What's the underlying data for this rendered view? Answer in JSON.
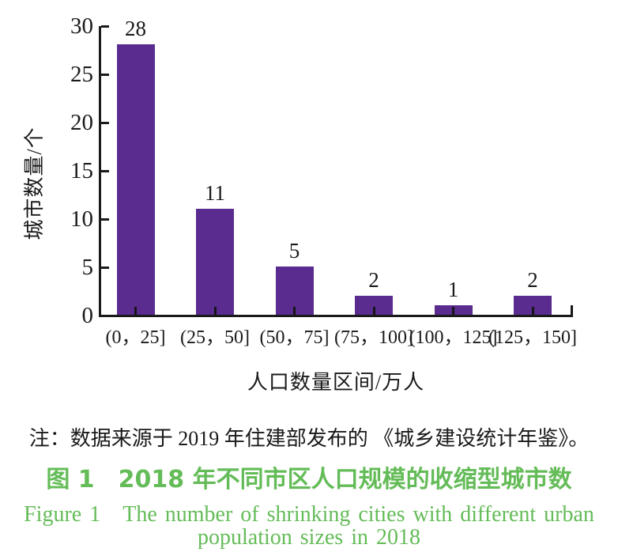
{
  "chart_data": {
    "type": "bar",
    "categories": [
      "(0，25]",
      "(25，50]",
      "(50，75]",
      "(75，100]",
      "(100，125]",
      "(125，150]"
    ],
    "values": [
      28,
      11,
      5,
      2,
      1,
      2
    ],
    "bar_value_labels": [
      "28",
      "11",
      "5",
      "2",
      "1",
      "2"
    ],
    "xlabel": "人口数量区间/万人",
    "ylabel": "城市数量/个",
    "ylim": [
      0,
      30
    ],
    "yticks": [
      0,
      5,
      10,
      15,
      20,
      25,
      30
    ],
    "grid": false,
    "legend": "none",
    "bar_color": "#5A2C8F"
  },
  "note_text": "注：数据来源于 2019 年住建部发布的 《城乡建设统计年鉴》。",
  "caption": {
    "line_zh": "图 1　2018 年不同市区人口规模的收缩型城市数",
    "line_en_1": "Figure 1　The number of shrinking cities with different urban",
    "line_en_2": "population sizes in 2018",
    "accent_color": "#64BC58"
  },
  "colors": {
    "bar": "#5A2C8F",
    "axis": "#1A1A1A",
    "text": "#1A1A1A",
    "caption_green": "#64BC58",
    "background": "#FFFFFF"
  }
}
